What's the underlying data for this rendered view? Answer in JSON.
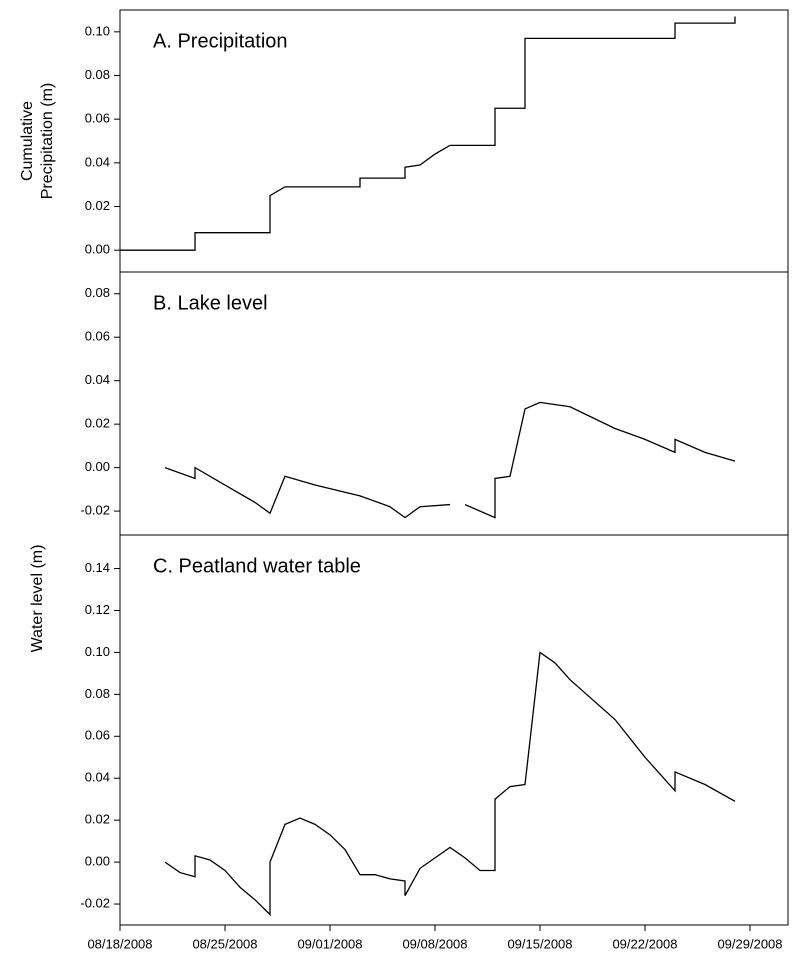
{
  "chart_data": [
    {
      "type": "line",
      "title": "A. Precipitation",
      "ylabel": [
        "Cumulative",
        "Precipitation (m)"
      ],
      "color": "#000000",
      "ylim": [
        -0.01,
        0.11
      ],
      "yticks": [
        {
          "value": 0,
          "label": "0.00"
        },
        {
          "value": 0.02,
          "label": "0.02"
        },
        {
          "value": 0.04,
          "label": "0.04"
        },
        {
          "value": 0.06,
          "label": "0.06"
        },
        {
          "value": 0.08,
          "label": "0.08"
        },
        {
          "value": 0.1,
          "label": "0.10"
        }
      ],
      "x": [
        "08/18/2008",
        "08/23/2008",
        "08/23/2008",
        "08/28/2008",
        "08/28/2008",
        "08/29/2008",
        "09/03/2008",
        "09/03/2008",
        "09/06/2008",
        "09/06/2008",
        "09/07/2008",
        "09/08/2008",
        "09/09/2008",
        "09/12/2008",
        "09/12/2008",
        "09/14/2008",
        "09/14/2008",
        "09/24/2008",
        "09/24/2008",
        "09/28/2008",
        "09/28/2008"
      ],
      "values": [
        0,
        0,
        0.008,
        0.008,
        0.025,
        0.029,
        0.029,
        0.033,
        0.033,
        0.038,
        0.039,
        0.044,
        0.048,
        0.048,
        0.065,
        0.065,
        0.097,
        0.097,
        0.104,
        0.104,
        0.107
      ]
    },
    {
      "type": "line",
      "title": "B. Lake level",
      "color": "#000000",
      "ylim": [
        -0.031,
        0.09
      ],
      "yticks": [
        {
          "value": -0.02,
          "label": "-0.02"
        },
        {
          "value": 0,
          "label": "0.00"
        },
        {
          "value": 0.02,
          "label": "0.02"
        },
        {
          "value": 0.04,
          "label": "0.04"
        },
        {
          "value": 0.06,
          "label": "0.06"
        },
        {
          "value": 0.08,
          "label": "0.08"
        }
      ],
      "x": [
        "08/21/2008",
        "08/23/2008",
        "08/23/2008",
        "08/25/2008",
        "08/27/2008",
        "08/28/2008",
        "08/29/2008",
        "08/31/2008",
        "09/03/2008",
        "09/05/2008",
        "09/06/2008",
        "09/07/2008",
        "09/09/2008",
        null,
        "09/10/2008",
        "09/12/2008",
        "09/12/2008",
        "09/13/2008",
        "09/14/2008",
        "09/15/2008",
        "09/17/2008",
        "09/20/2008",
        "09/22/2008",
        "09/24/2008",
        "09/24/2008",
        "09/26/2008",
        "09/28/2008"
      ],
      "values": [
        0,
        -0.005,
        0,
        -0.008,
        -0.016,
        -0.021,
        -0.004,
        -0.008,
        -0.013,
        -0.018,
        -0.023,
        -0.018,
        -0.017,
        null,
        -0.017,
        -0.023,
        -0.005,
        -0.004,
        0.027,
        0.03,
        0.028,
        0.018,
        0.013,
        0.007,
        0.013,
        0.007,
        0.003
      ]
    },
    {
      "type": "line",
      "title": "C. Peatland water table",
      "ylabel": "Water level (m)",
      "color": "#000000",
      "ylim": [
        -0.03,
        0.156
      ],
      "yticks": [
        {
          "value": -0.02,
          "label": "-0.02"
        },
        {
          "value": 0,
          "label": "0.00"
        },
        {
          "value": 0.02,
          "label": "0.02"
        },
        {
          "value": 0.04,
          "label": "0.04"
        },
        {
          "value": 0.06,
          "label": "0.06"
        },
        {
          "value": 0.08,
          "label": "0.08"
        },
        {
          "value": 0.1,
          "label": "0.10"
        },
        {
          "value": 0.12,
          "label": "0.12"
        },
        {
          "value": 0.14,
          "label": "0.14"
        }
      ],
      "xlim": [
        "08/18/2008",
        "09/29/2008"
      ],
      "xticks": [
        "08/18/2008",
        "08/25/2008",
        "09/01/2008",
        "09/08/2008",
        "09/15/2008",
        "09/22/2008",
        "09/29/2008"
      ],
      "x": [
        "08/21/2008",
        "08/22/2008",
        "08/23/2008",
        "08/23/2008",
        "08/24/2008",
        "08/25/2008",
        "08/26/2008",
        "08/27/2008",
        "08/28/2008",
        "08/28/2008",
        "08/29/2008",
        "08/30/2008",
        "08/31/2008",
        "09/01/2008",
        "09/02/2008",
        "09/03/2008",
        "09/04/2008",
        "09/05/2008",
        "09/06/2008",
        "09/06/2008",
        "09/07/2008",
        "09/08/2008",
        "09/09/2008",
        "09/10/2008",
        "09/11/2008",
        "09/12/2008",
        "09/12/2008",
        "09/13/2008",
        "09/14/2008",
        "09/15/2008",
        "09/16/2008",
        "09/17/2008",
        "09/20/2008",
        "09/22/2008",
        "09/24/2008",
        "09/24/2008",
        "09/26/2008",
        "09/28/2008"
      ],
      "values": [
        0,
        -0.005,
        -0.007,
        0.003,
        0.001,
        -0.004,
        -0.012,
        -0.018,
        -0.025,
        0,
        0.018,
        0.021,
        0.018,
        0.013,
        0.006,
        -0.006,
        -0.006,
        -0.008,
        -0.009,
        -0.016,
        -0.003,
        0.002,
        0.007,
        0.002,
        -0.004,
        -0.004,
        0.03,
        0.036,
        0.037,
        0.1,
        0.095,
        0.087,
        0.068,
        0.05,
        0.034,
        0.043,
        0.037,
        0.029
      ]
    }
  ]
}
